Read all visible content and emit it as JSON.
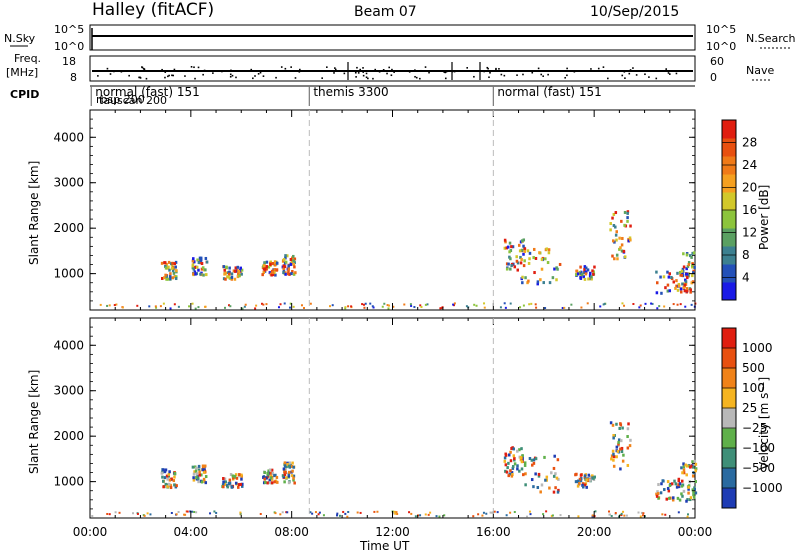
{
  "header": {
    "station": "Halley (fitACF)",
    "beam": "Beam 07",
    "date": "10/Sep/2015"
  },
  "nsky": {
    "label": "N.Sky",
    "y_top_label": "10^5",
    "y_bottom_label": "10^0",
    "right_top_label": "10^5",
    "right_bottom_label": "10^0",
    "right_title": "N.Search"
  },
  "freq": {
    "label_line1": "Freq.",
    "label_line2": "[MHz]",
    "left_top_label": "18",
    "left_bottom_label": "8",
    "right_top_label": "60",
    "right_bottom_label": "0",
    "right_title": "Nave"
  },
  "cpid": {
    "label": "CPID",
    "segments": [
      {
        "start_hour": 0.05,
        "label": "normal (fast) 151"
      },
      {
        "start_hour": 8.7,
        "label": "themis 3300"
      },
      {
        "start_hour": 16.0,
        "label": "normal (fast) 151"
      }
    ],
    "overlap_labels": [
      "rbsp 200",
      "tauscan 200"
    ]
  },
  "chart_data": [
    {
      "type": "heatmap",
      "panel": "power",
      "ylabel": "Slant Range [km]",
      "yticks": [
        "1000",
        "2000",
        "3000",
        "4000"
      ],
      "ylim": [
        200,
        4600
      ],
      "xlim": [
        0,
        24
      ],
      "colorbar": {
        "label": "Power [dB]",
        "ticks": [
          "4",
          "8",
          "12",
          "16",
          "20",
          "24",
          "28"
        ],
        "colors": [
          "#1a1ae6",
          "#2350b8",
          "#3c8090",
          "#5aa062",
          "#8cc43c",
          "#d2c82a",
          "#f5a020",
          "#f07a18",
          "#e85010",
          "#e01e10"
        ]
      },
      "cpid_change_hours": [
        8.7,
        16.0
      ]
    },
    {
      "type": "heatmap",
      "panel": "velocity",
      "ylabel": "Slant Range [km]",
      "yticks": [
        "1000",
        "2000",
        "3000",
        "4000"
      ],
      "ylim": [
        200,
        4600
      ],
      "xlim": [
        0,
        24
      ],
      "xlabel": "Time UT",
      "xticks": [
        "00:00",
        "04:00",
        "08:00",
        "12:00",
        "16:00",
        "20:00",
        "00:00"
      ],
      "colorbar": {
        "label": "Velocity [m s⁻¹]",
        "ticks": [
          "1000",
          "500",
          "100",
          "25",
          "−25",
          "−100",
          "−500",
          "−1000"
        ],
        "colors": [
          "#1e3cb4",
          "#2a6aa0",
          "#3f8f78",
          "#5fb04a",
          "#b8b8b8",
          "#f5b420",
          "#f08218",
          "#e85010",
          "#e01e10"
        ]
      },
      "cpid_change_hours": [
        8.7,
        16.0
      ]
    }
  ]
}
